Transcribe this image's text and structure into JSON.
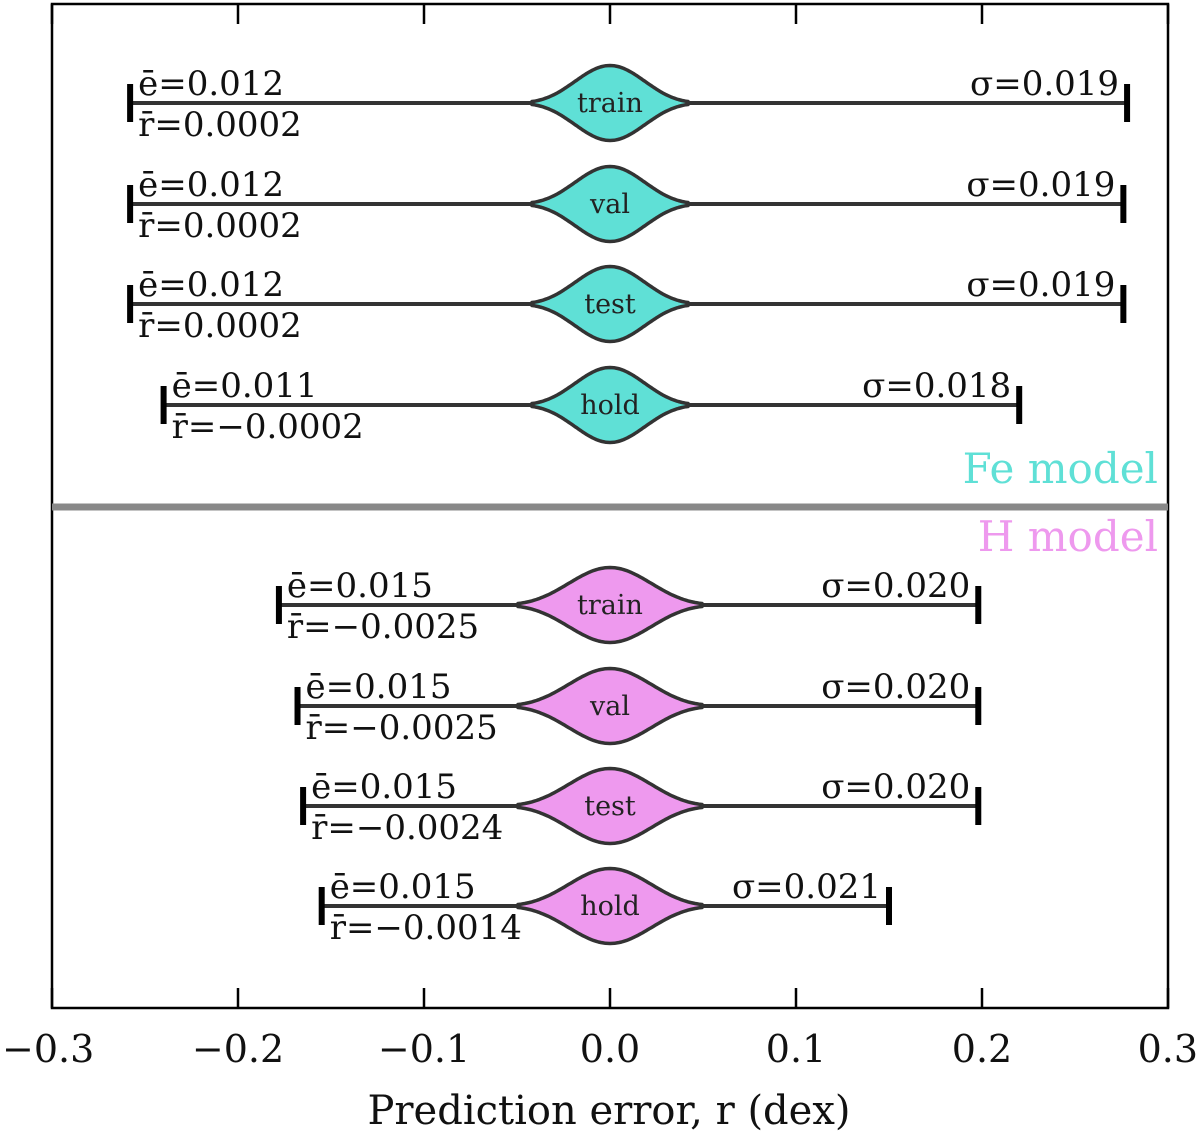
{
  "chart_data": {
    "type": "violin",
    "xlabel": "Prediction error, r (dex)",
    "xlim": [
      -0.3,
      0.3
    ],
    "xticks": [
      -0.3,
      -0.2,
      -0.1,
      0.0,
      0.1,
      0.2,
      0.3
    ],
    "xtick_labels": [
      "−0.3",
      "−0.2",
      "−0.1",
      "0.0",
      "0.1",
      "0.2",
      "0.3"
    ],
    "groups": [
      {
        "name": "Fe model",
        "color": "#5fe0d6",
        "series": [
          {
            "label": "train",
            "min": -0.258,
            "max": 0.278,
            "e_bar": "0.012",
            "r_bar": "0.0002",
            "sigma": "0.019",
            "e_text": "ē=0.012",
            "r_text": "r̄=0.0002",
            "s_text": "σ=0.019"
          },
          {
            "label": "val",
            "min": -0.258,
            "max": 0.276,
            "e_bar": "0.012",
            "r_bar": "0.0002",
            "sigma": "0.019",
            "e_text": "ē=0.012",
            "r_text": "r̄=0.0002",
            "s_text": "σ=0.019"
          },
          {
            "label": "test",
            "min": -0.258,
            "max": 0.276,
            "e_bar": "0.012",
            "r_bar": "0.0002",
            "sigma": "0.019",
            "e_text": "ē=0.012",
            "r_text": "r̄=0.0002",
            "s_text": "σ=0.019"
          },
          {
            "label": "hold",
            "min": -0.24,
            "max": 0.22,
            "e_bar": "0.011",
            "r_bar": "−0.0002",
            "sigma": "0.018",
            "e_text": "ē=0.011",
            "r_text": "r̄=−0.0002",
            "s_text": "σ=0.018"
          }
        ]
      },
      {
        "name": "H model",
        "color": "#ee99ee",
        "series": [
          {
            "label": "train",
            "min": -0.178,
            "max": 0.198,
            "e_bar": "0.015",
            "r_bar": "−0.0025",
            "sigma": "0.020",
            "e_text": "ē=0.015",
            "r_text": "r̄=−0.0025",
            "s_text": "σ=0.020"
          },
          {
            "label": "val",
            "min": -0.168,
            "max": 0.198,
            "e_bar": "0.015",
            "r_bar": "−0.0025",
            "sigma": "0.020",
            "e_text": "ē=0.015",
            "r_text": "r̄=−0.0025",
            "s_text": "σ=0.020"
          },
          {
            "label": "test",
            "min": -0.165,
            "max": 0.198,
            "e_bar": "0.015",
            "r_bar": "−0.0024",
            "sigma": "0.020",
            "e_text": "ē=0.015",
            "r_text": "r̄=−0.0024",
            "s_text": "σ=0.020"
          },
          {
            "label": "hold",
            "min": -0.155,
            "max": 0.15,
            "e_bar": "0.015",
            "r_bar": "−0.0014",
            "sigma": "0.021",
            "e_text": "ē=0.015",
            "r_text": "r̄=−0.0014",
            "s_text": "σ=0.021"
          }
        ]
      }
    ],
    "divider_color": "#888888",
    "grid": false
  }
}
